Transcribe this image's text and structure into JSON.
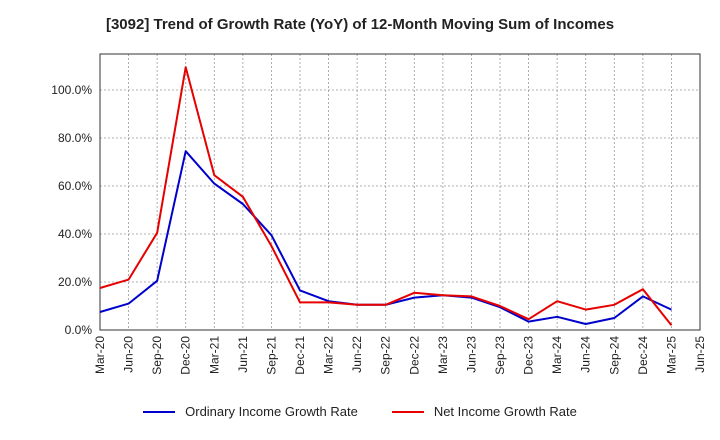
{
  "chart_data": {
    "type": "line",
    "title": "[3092]  Trend of Growth Rate (YoY) of 12-Month Moving Sum of Incomes",
    "xlabel": "",
    "ylabel": "",
    "ylim": [
      0,
      115
    ],
    "y_ticks": [
      "0.0%",
      "20.0%",
      "40.0%",
      "60.0%",
      "80.0%",
      "100.0%"
    ],
    "y_tick_values": [
      0,
      20,
      40,
      60,
      80,
      100
    ],
    "grid": true,
    "legend_position": "bottom",
    "categories": [
      "Mar-20",
      "Jun-20",
      "Sep-20",
      "Dec-20",
      "Mar-21",
      "Jun-21",
      "Sep-21",
      "Dec-21",
      "Mar-22",
      "Jun-22",
      "Sep-22",
      "Dec-22",
      "Mar-23",
      "Jun-23",
      "Sep-23",
      "Dec-23",
      "Mar-24",
      "Jun-24",
      "Sep-24",
      "Dec-24",
      "Mar-25",
      "Jun-25"
    ],
    "series": [
      {
        "name": "Ordinary Income Growth Rate",
        "color": "#0000cc",
        "x": [
          "Mar-20",
          "Jun-20",
          "Sep-20",
          "Dec-20",
          "Mar-21",
          "Jun-21",
          "Sep-21",
          "Dec-21",
          "Mar-22",
          "Jun-22",
          "Sep-22",
          "Dec-22",
          "Mar-23",
          "Jun-23",
          "Sep-23",
          "Dec-23",
          "Mar-24",
          "Jun-24",
          "Sep-24",
          "Dec-24",
          "Mar-25"
        ],
        "values": [
          7.5,
          11.0,
          20.5,
          74.5,
          61.0,
          52.5,
          39.5,
          16.5,
          12.0,
          10.5,
          10.5,
          13.5,
          14.5,
          13.5,
          9.5,
          3.5,
          5.5,
          2.5,
          5.0,
          14.0,
          8.5
        ]
      },
      {
        "name": "Net Income Growth Rate",
        "color": "#e60000",
        "x": [
          "Mar-20",
          "Jun-20",
          "Sep-20",
          "Dec-20",
          "Mar-21",
          "Jun-21",
          "Sep-21",
          "Dec-21",
          "Mar-22",
          "Jun-22",
          "Sep-22",
          "Dec-22",
          "Mar-23",
          "Jun-23",
          "Sep-23",
          "Dec-23",
          "Mar-24",
          "Jun-24",
          "Sep-24",
          "Dec-24",
          "Mar-25"
        ],
        "values": [
          17.5,
          21.0,
          40.5,
          109.5,
          64.5,
          55.5,
          35.0,
          11.5,
          11.5,
          10.5,
          10.5,
          15.5,
          14.5,
          14.0,
          10.0,
          4.5,
          12.0,
          8.5,
          10.5,
          17.0,
          2.0
        ]
      }
    ]
  }
}
